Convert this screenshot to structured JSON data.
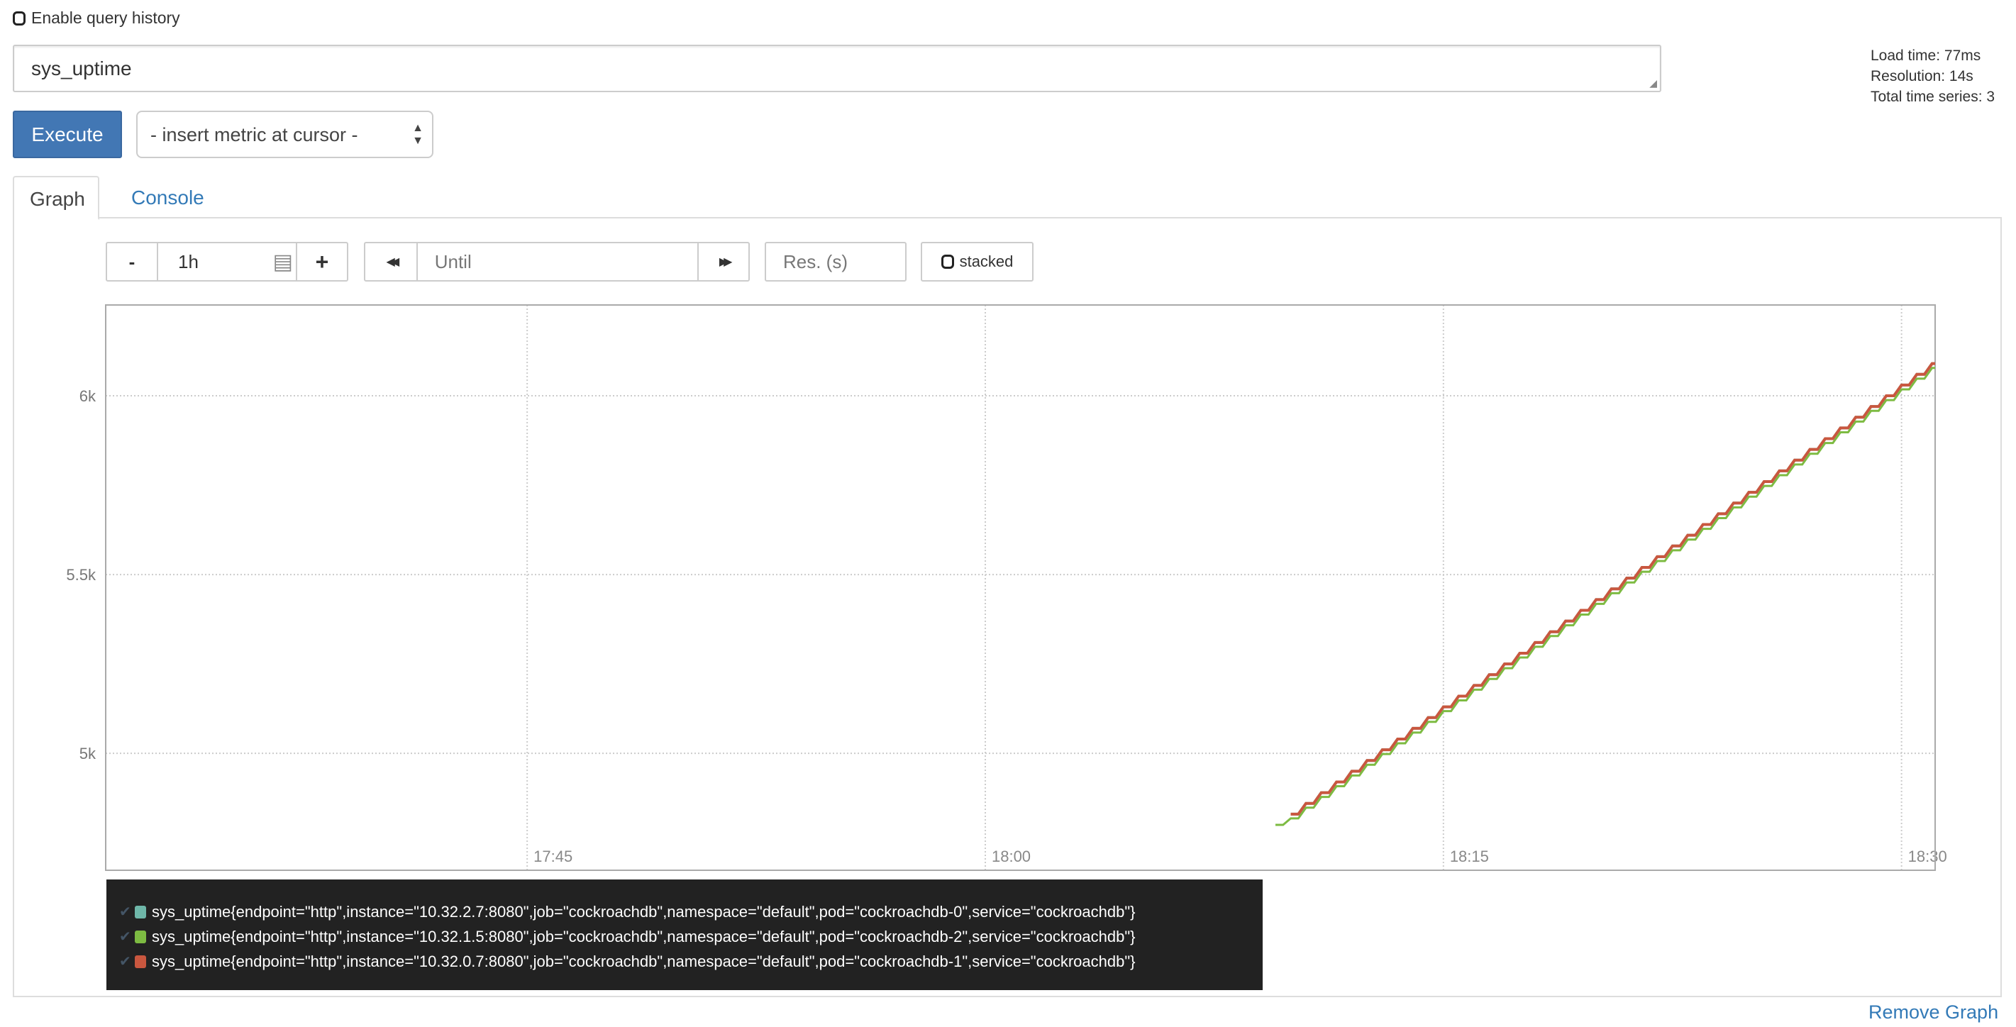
{
  "query_history": {
    "label": "Enable query history",
    "checked": false
  },
  "expression": {
    "value": "sys_uptime"
  },
  "stats": {
    "load_time": "Load time: 77ms",
    "resolution": "Resolution: 14s",
    "total_series": "Total time series: 3"
  },
  "execute_label": "Execute",
  "metric_select": {
    "selected": "- insert metric at cursor -"
  },
  "tabs": [
    {
      "label": "Graph",
      "active": true
    },
    {
      "label": "Console",
      "active": false
    }
  ],
  "controls": {
    "minus": "-",
    "range": "1h",
    "plus": "+",
    "back": "◀◀",
    "until_placeholder": "Until",
    "forward": "▶▶",
    "res_placeholder": "Res. (s)",
    "stacked_label": "stacked"
  },
  "remove_graph": "Remove Graph",
  "chart_data": {
    "type": "line",
    "step": true,
    "grid": true,
    "ylim": [
      4673,
      6254
    ],
    "xlim": [
      "17:31:12",
      "18:31:06"
    ],
    "yticks": [
      {
        "v": 5000,
        "label": "5k"
      },
      {
        "v": 5500,
        "label": "5.5k"
      },
      {
        "v": 6000,
        "label": "6k"
      }
    ],
    "xticks": [
      "17:45",
      "18:00",
      "18:15",
      "18:30"
    ],
    "x": [
      "18:09:30",
      "18:10:00",
      "18:10:30",
      "18:11:00",
      "18:11:30",
      "18:12:00",
      "18:12:30",
      "18:13:00",
      "18:13:30",
      "18:14:00",
      "18:14:30",
      "18:15:00",
      "18:15:30",
      "18:16:00",
      "18:16:30",
      "18:17:00",
      "18:17:30",
      "18:18:00",
      "18:18:30",
      "18:19:00",
      "18:19:30",
      "18:20:00",
      "18:20:30",
      "18:21:00",
      "18:21:30",
      "18:22:00",
      "18:22:30",
      "18:23:00",
      "18:23:30",
      "18:24:00",
      "18:24:30",
      "18:25:00",
      "18:25:30",
      "18:26:00",
      "18:26:30",
      "18:27:00",
      "18:27:30",
      "18:28:00",
      "18:28:30",
      "18:29:00",
      "18:29:30",
      "18:30:00",
      "18:30:30",
      "18:31:00"
    ],
    "series": [
      {
        "name": "sys_uptime{endpoint=\"http\",instance=\"10.32.2.7:8080\",job=\"cockroachdb\",namespace=\"default\",pod=\"cockroachdb-0\",service=\"cockroachdb\"}",
        "color": "#6fb7a9",
        "values": [
          null,
          4830,
          4860,
          4890,
          4920,
          4950,
          4980,
          5010,
          5040,
          5070,
          5100,
          5130,
          5160,
          5190,
          5220,
          5250,
          5280,
          5310,
          5340,
          5370,
          5400,
          5430,
          5460,
          5490,
          5520,
          5550,
          5580,
          5610,
          5640,
          5670,
          5700,
          5730,
          5760,
          5790,
          5820,
          5850,
          5880,
          5910,
          5940,
          5970,
          6000,
          6030,
          6060,
          6090
        ]
      },
      {
        "name": "sys_uptime{endpoint=\"http\",instance=\"10.32.1.5:8080\",job=\"cockroachdb\",namespace=\"default\",pod=\"cockroachdb-2\",service=\"cockroachdb\"}",
        "color": "#7dbb42",
        "values": [
          4800,
          4818,
          4848,
          4878,
          4908,
          4938,
          4968,
          4998,
          5028,
          5058,
          5088,
          5118,
          5148,
          5178,
          5208,
          5238,
          5268,
          5298,
          5328,
          5358,
          5388,
          5418,
          5448,
          5478,
          5508,
          5538,
          5568,
          5598,
          5628,
          5658,
          5688,
          5718,
          5748,
          5778,
          5808,
          5838,
          5868,
          5898,
          5928,
          5958,
          5988,
          6018,
          6048,
          6078
        ]
      },
      {
        "name": "sys_uptime{endpoint=\"http\",instance=\"10.32.0.7:8080\",job=\"cockroachdb\",namespace=\"default\",pod=\"cockroachdb-1\",service=\"cockroachdb\"}",
        "color": "#c9573f",
        "values": [
          null,
          4830,
          4860,
          4890,
          4920,
          4950,
          4980,
          5010,
          5040,
          5070,
          5100,
          5130,
          5160,
          5190,
          5220,
          5250,
          5280,
          5310,
          5340,
          5370,
          5400,
          5430,
          5460,
          5490,
          5520,
          5550,
          5580,
          5610,
          5640,
          5670,
          5700,
          5730,
          5760,
          5790,
          5820,
          5850,
          5880,
          5910,
          5940,
          5970,
          6000,
          6030,
          6060,
          6090
        ]
      }
    ]
  }
}
